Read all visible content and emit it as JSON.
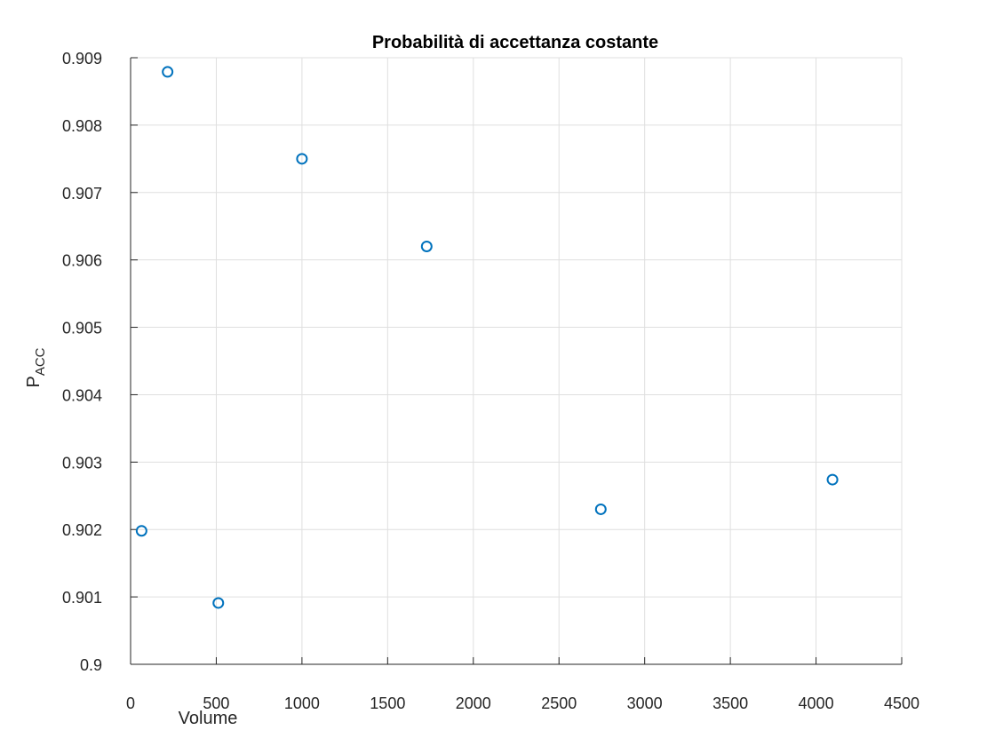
{
  "chart_data": {
    "type": "scatter",
    "title": "Probabilità di accettanza costante",
    "xlabel": "Volume",
    "ylabel": "P",
    "ylabel_subscript": "ACC",
    "xlim": [
      0,
      4500
    ],
    "ylim": [
      0.9,
      0.909
    ],
    "xticks": [
      0,
      500,
      1000,
      1500,
      2000,
      2500,
      3000,
      3500,
      4000,
      4500
    ],
    "xtick_labels": [
      "0",
      "500",
      "1000",
      "1500",
      "2000",
      "2500",
      "3000",
      "3500",
      "4000",
      "4500"
    ],
    "yticks": [
      0.9,
      0.901,
      0.902,
      0.903,
      0.904,
      0.905,
      0.906,
      0.907,
      0.908,
      0.909
    ],
    "ytick_labels": [
      "0.9",
      "0.901",
      "0.902",
      "0.903",
      "0.904",
      "0.905",
      "0.906",
      "0.907",
      "0.908",
      "0.909"
    ],
    "grid": true,
    "marker": "circle",
    "marker_color": "#0072bd",
    "series": [
      {
        "x": [
          64,
          216,
          512,
          1000,
          1728,
          2744,
          4096
        ],
        "y": [
          0.90198,
          0.90879,
          0.90091,
          0.9075,
          0.9062,
          0.9023,
          0.90274
        ]
      }
    ]
  }
}
